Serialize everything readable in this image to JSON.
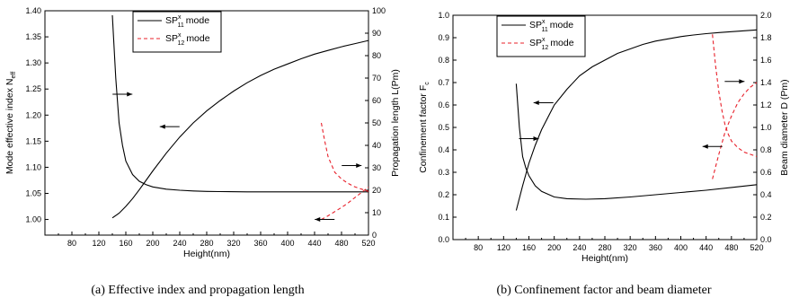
{
  "chart_data": [
    {
      "type": "line",
      "caption": "(a) Effective index and propagation length",
      "xlabel": "Height(nm)",
      "ylabel_left": "Mode effective index N",
      "ylabel_left_sub": "eff",
      "ylabel_right": "Propagation length L(Pm)",
      "xlim": [
        40,
        520
      ],
      "xticks": [
        80,
        120,
        160,
        200,
        240,
        280,
        320,
        360,
        400,
        440,
        480,
        520
      ],
      "ylim_left": [
        0.97,
        1.4
      ],
      "yticks_left": [
        1.0,
        1.05,
        1.1,
        1.15,
        1.2,
        1.25,
        1.3,
        1.35,
        1.4
      ],
      "ylim_right": [
        0,
        100
      ],
      "yticks_right": [
        0,
        10,
        20,
        30,
        40,
        50,
        60,
        70,
        80,
        90,
        100
      ],
      "legend": {
        "position": "top-center",
        "items": [
          {
            "prefix": "SP",
            "sup": "x",
            "sub": "11",
            "suffix": "mode",
            "style": "solid",
            "color": "#000000"
          },
          {
            "prefix": "SP",
            "sup": "x",
            "sub": "12",
            "suffix": "mode",
            "style": "dashed",
            "color": "#e8202a"
          }
        ]
      },
      "series": [
        {
          "axis": "left",
          "style": "solid",
          "color": "#000000",
          "x": [
            140,
            150,
            160,
            170,
            180,
            190,
            200,
            220,
            240,
            260,
            280,
            300,
            320,
            340,
            360,
            380,
            400,
            420,
            440,
            460,
            480,
            500,
            520
          ],
          "y": [
            1.003,
            1.012,
            1.025,
            1.04,
            1.057,
            1.075,
            1.093,
            1.127,
            1.158,
            1.185,
            1.208,
            1.228,
            1.246,
            1.262,
            1.276,
            1.288,
            1.298,
            1.308,
            1.317,
            1.324,
            1.331,
            1.337,
            1.343
          ]
        },
        {
          "axis": "right",
          "style": "solid",
          "color": "#000000",
          "x": [
            140,
            145,
            150,
            155,
            160,
            170,
            180,
            190,
            200,
            220,
            240,
            260,
            280,
            300,
            340,
            380,
            420,
            460,
            500,
            520
          ],
          "y": [
            98,
            70,
            50,
            40,
            33,
            27,
            24,
            22.5,
            21.5,
            20.5,
            20,
            19.7,
            19.5,
            19.4,
            19.3,
            19.3,
            19.3,
            19.3,
            19.3,
            19.3
          ]
        },
        {
          "axis": "left",
          "style": "dashed",
          "color": "#e8202a",
          "x": [
            450,
            460,
            470,
            480,
            490,
            500,
            510,
            520
          ],
          "y": [
            1.0,
            1.007,
            1.015,
            1.023,
            1.032,
            1.042,
            1.052,
            1.062
          ]
        },
        {
          "axis": "right",
          "style": "dashed",
          "color": "#e8202a",
          "x": [
            450,
            455,
            460,
            470,
            480,
            490,
            500,
            510,
            520
          ],
          "y": [
            50,
            42,
            35,
            28,
            25,
            23,
            21.5,
            20.5,
            19.5
          ]
        }
      ],
      "arrows": [
        {
          "x": 155,
          "y_axis": "left",
          "y": 1.24,
          "direction": "right"
        },
        {
          "x": 225,
          "y_axis": "left",
          "y": 1.178,
          "direction": "left"
        },
        {
          "x": 495,
          "y_axis": "right",
          "y": 31,
          "direction": "right"
        },
        {
          "x": 455,
          "y_axis": "right",
          "y": 7,
          "direction": "left"
        }
      ]
    },
    {
      "type": "line",
      "caption": "(b) Confinement factor and beam diameter",
      "xlabel": "Height(nm)",
      "ylabel_left": "Confinement factor F",
      "ylabel_left_sub": "c",
      "ylabel_right": "Beam diameter D (Pm)",
      "xlim": [
        40,
        520
      ],
      "xticks": [
        80,
        120,
        160,
        200,
        240,
        280,
        320,
        360,
        400,
        440,
        480,
        520
      ],
      "ylim_left": [
        0.0,
        1.0
      ],
      "yticks_left": [
        0.0,
        0.1,
        0.2,
        0.3,
        0.4,
        0.5,
        0.6,
        0.7,
        0.8,
        0.9,
        1.0
      ],
      "ylim_right": [
        0.0,
        2.0
      ],
      "yticks_right": [
        0.0,
        0.2,
        0.4,
        0.6,
        0.8,
        1.0,
        1.2,
        1.4,
        1.6,
        1.8,
        2.0
      ],
      "legend": {
        "position": "top-left",
        "items": [
          {
            "prefix": "SP",
            "sup": "x",
            "sub": "11",
            "suffix": "mode",
            "style": "solid",
            "color": "#000000"
          },
          {
            "prefix": "SP",
            "sup": "x",
            "sub": "12",
            "suffix": "mode",
            "style": "dashed",
            "color": "#e8202a"
          }
        ]
      },
      "series": [
        {
          "axis": "left",
          "style": "solid",
          "color": "#000000",
          "x": [
            140,
            150,
            160,
            170,
            180,
            200,
            220,
            240,
            260,
            280,
            300,
            320,
            340,
            360,
            380,
            400,
            420,
            440,
            460,
            480,
            500,
            520
          ],
          "y": [
            0.13,
            0.24,
            0.34,
            0.42,
            0.49,
            0.6,
            0.67,
            0.73,
            0.77,
            0.8,
            0.83,
            0.85,
            0.87,
            0.885,
            0.895,
            0.905,
            0.912,
            0.918,
            0.923,
            0.927,
            0.931,
            0.935
          ]
        },
        {
          "axis": "right",
          "style": "solid",
          "color": "#000000",
          "x": [
            140,
            145,
            150,
            155,
            160,
            170,
            180,
            200,
            220,
            250,
            280,
            320,
            360,
            400,
            440,
            480,
            520
          ],
          "y": [
            1.39,
            1.0,
            0.74,
            0.64,
            0.57,
            0.48,
            0.43,
            0.38,
            0.365,
            0.36,
            0.365,
            0.38,
            0.4,
            0.42,
            0.44,
            0.465,
            0.49
          ]
        },
        {
          "axis": "left",
          "style": "dashed",
          "color": "#e8202a",
          "x": [
            450,
            460,
            470,
            480,
            490,
            500,
            510,
            520
          ],
          "y": [
            0.27,
            0.38,
            0.48,
            0.55,
            0.61,
            0.65,
            0.68,
            0.7
          ]
        },
        {
          "axis": "right",
          "style": "dashed",
          "color": "#e8202a",
          "x": [
            450,
            455,
            460,
            465,
            470,
            475,
            480,
            490,
            500,
            510,
            520
          ],
          "y": [
            1.83,
            1.55,
            1.32,
            1.15,
            1.02,
            0.94,
            0.88,
            0.82,
            0.78,
            0.76,
            0.74
          ]
        }
      ],
      "arrows": [
        {
          "x": 160,
          "y_axis": "left",
          "y": 0.45,
          "direction": "right"
        },
        {
          "x": 183,
          "y_axis": "left",
          "y": 0.61,
          "direction": "left"
        },
        {
          "x": 485,
          "y_axis": "left",
          "y": 0.705,
          "direction": "right"
        },
        {
          "x": 450,
          "y_axis": "left",
          "y": 0.415,
          "direction": "left"
        }
      ]
    }
  ]
}
